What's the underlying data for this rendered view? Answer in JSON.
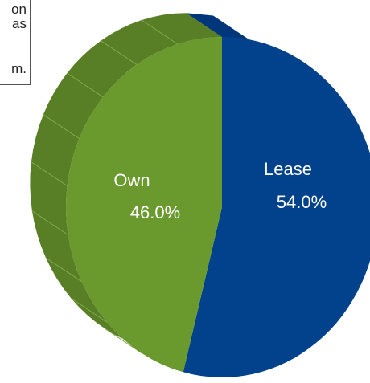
{
  "callout": {
    "lines": [
      "on",
      "as",
      "m."
    ]
  },
  "chart_data": {
    "type": "pie",
    "title": "",
    "slices": [
      {
        "label": "Lease",
        "value": 54.0,
        "value_label": "54.0%",
        "color": "#02428C",
        "side_color": "#01367A"
      },
      {
        "label": "Own",
        "value": 46.0,
        "value_label": "46.0%",
        "color": "#6A9A2E",
        "side_color": "#587F26"
      }
    ]
  }
}
